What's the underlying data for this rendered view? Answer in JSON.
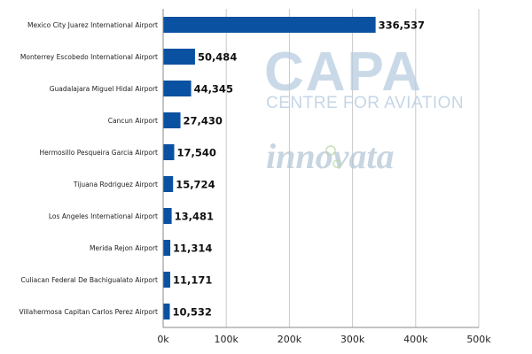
{
  "chart_data": {
    "type": "bar",
    "orientation": "horizontal",
    "categories": [
      "Mexico City Juarez International Airport",
      "Monterrey Escobedo International Airport",
      "Guadalajara Miguel Hidal Airport",
      "Cancun Airport",
      "Hermosillo Pesqueira Garcia Airport",
      "Tijuana Rodriguez Airport",
      "Los Angeles International Airport",
      "Merida Rejon Airport",
      "Culiacan Federal De Bachigualato Airport",
      "Villahermosa Capitan Carlos Perez Airport"
    ],
    "values": [
      336537,
      50484,
      44345,
      27430,
      17540,
      15724,
      13481,
      11314,
      11171,
      10532
    ],
    "value_labels": [
      "336,537",
      "50,484",
      "44,345",
      "27,430",
      "17,540",
      "15,724",
      "13,481",
      "11,314",
      "11,171",
      "10,532"
    ],
    "xlim": [
      0,
      500000
    ],
    "xticks": [
      0,
      100000,
      200000,
      300000,
      400000,
      500000
    ],
    "xtick_labels": [
      "0k",
      "100k",
      "200k",
      "300k",
      "400k",
      "500k"
    ],
    "grid": "vertical",
    "bar_color": "#0a51a1",
    "title": "",
    "xlabel": "",
    "ylabel": ""
  },
  "watermarks": {
    "capa_logo": "CAPA",
    "capa_subtitle": "CENTRE FOR AVIATION",
    "innovata_logo": "innovata"
  }
}
